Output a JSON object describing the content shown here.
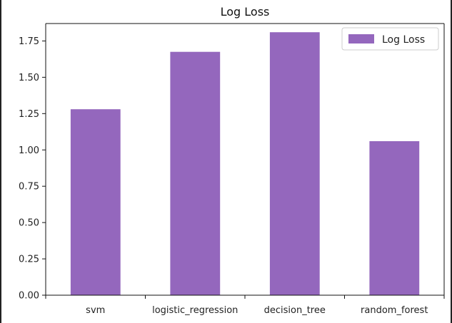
{
  "chart_data": {
    "type": "bar",
    "title": "Log Loss",
    "categories": [
      "svm",
      "logistic_regression",
      "decision_tree",
      "random_forest"
    ],
    "series": [
      {
        "name": "Log Loss",
        "values": [
          1.28,
          1.675,
          1.81,
          1.06
        ],
        "color": "#9467bd"
      }
    ],
    "xlabel": "",
    "ylabel": "",
    "ylim": [
      0,
      1.87
    ],
    "yticks": [
      "0.00",
      "0.25",
      "0.50",
      "0.75",
      "1.00",
      "1.25",
      "1.50",
      "1.75"
    ],
    "ytick_values": [
      0,
      0.25,
      0.5,
      0.75,
      1.0,
      1.25,
      1.5,
      1.75
    ],
    "grid": false,
    "legend_position": "top-right"
  }
}
